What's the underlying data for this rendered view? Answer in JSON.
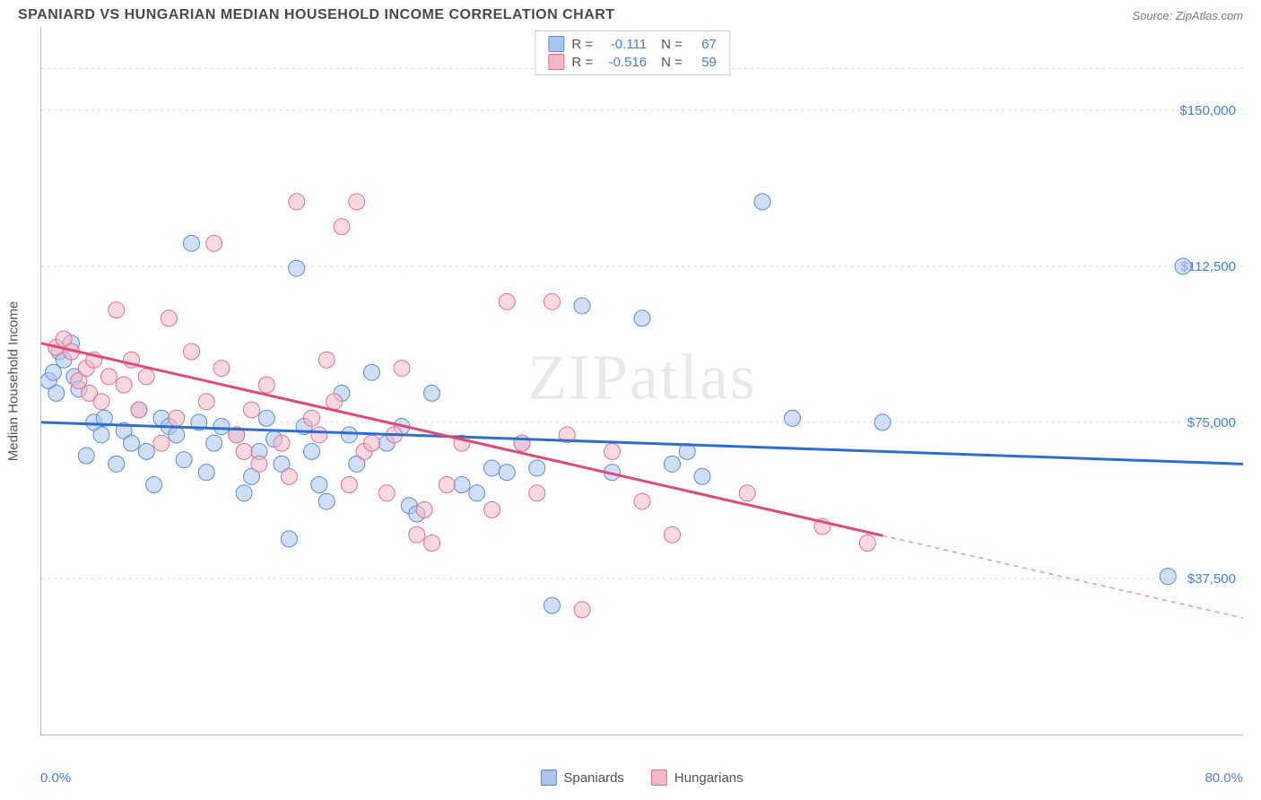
{
  "header": {
    "title": "SPANIARD VS HUNGARIAN MEDIAN HOUSEHOLD INCOME CORRELATION CHART",
    "source": "Source: ZipAtlas.com"
  },
  "chart": {
    "type": "scatter",
    "y_axis_label": "Median Household Income",
    "xlim": [
      0,
      80
    ],
    "ylim": [
      0,
      170000
    ],
    "x_tick_min_label": "0.0%",
    "x_tick_max_label": "80.0%",
    "x_ticks": [
      0,
      10,
      20,
      30,
      40,
      50,
      60,
      70,
      80
    ],
    "y_ticks": [
      37500,
      75000,
      112500,
      150000
    ],
    "y_tick_labels": [
      "$37,500",
      "$75,000",
      "$112,500",
      "$150,000"
    ],
    "y_grid_dashed": [
      37500,
      75000,
      112500,
      150000,
      160000
    ],
    "grid_color": "#d8d8d8",
    "axis_color": "#bbbbbb",
    "background_color": "#ffffff",
    "y_label_color": "#4a7fd8",
    "point_radius": 9,
    "stats": [
      {
        "swatch_fill": "#a9c5ec",
        "swatch_stroke": "#5a8cd6",
        "r_label": "R =",
        "r": "-0.111",
        "n_label": "N =",
        "n": "67"
      },
      {
        "swatch_fill": "#f2b9c6",
        "swatch_stroke": "#e06f8e",
        "r_label": "R =",
        "r": "-0.516",
        "n_label": "N =",
        "n": "59"
      }
    ],
    "series": [
      {
        "name": "Spaniards",
        "fill": "#a9c5ec",
        "stroke": "#5a8cd6",
        "fill_opacity": 0.55,
        "trend": {
          "color": "#2d6fd0",
          "width": 3,
          "x1": 0,
          "y1": 75000,
          "x2": 80,
          "y2": 65000,
          "solid_to_x": 80
        },
        "points": [
          [
            0.5,
            85000
          ],
          [
            0.8,
            87000
          ],
          [
            1,
            82000
          ],
          [
            1.2,
            92000
          ],
          [
            1.5,
            90000
          ],
          [
            2,
            94000
          ],
          [
            2.2,
            86000
          ],
          [
            2.5,
            83000
          ],
          [
            3,
            67000
          ],
          [
            3.5,
            75000
          ],
          [
            4,
            72000
          ],
          [
            4.2,
            76000
          ],
          [
            5,
            65000
          ],
          [
            5.5,
            73000
          ],
          [
            6,
            70000
          ],
          [
            6.5,
            78000
          ],
          [
            7,
            68000
          ],
          [
            7.5,
            60000
          ],
          [
            8,
            76000
          ],
          [
            8.5,
            74000
          ],
          [
            9,
            72000
          ],
          [
            9.5,
            66000
          ],
          [
            10,
            118000
          ],
          [
            10.5,
            75000
          ],
          [
            11,
            63000
          ],
          [
            11.5,
            70000
          ],
          [
            12,
            74000
          ],
          [
            13,
            72000
          ],
          [
            13.5,
            58000
          ],
          [
            14,
            62000
          ],
          [
            14.5,
            68000
          ],
          [
            15,
            76000
          ],
          [
            15.5,
            71000
          ],
          [
            16,
            65000
          ],
          [
            16.5,
            47000
          ],
          [
            17,
            112000
          ],
          [
            17.5,
            74000
          ],
          [
            18,
            68000
          ],
          [
            18.5,
            60000
          ],
          [
            19,
            56000
          ],
          [
            20,
            82000
          ],
          [
            20.5,
            72000
          ],
          [
            21,
            65000
          ],
          [
            22,
            87000
          ],
          [
            23,
            70000
          ],
          [
            24,
            74000
          ],
          [
            24.5,
            55000
          ],
          [
            25,
            53000
          ],
          [
            26,
            82000
          ],
          [
            28,
            60000
          ],
          [
            29,
            58000
          ],
          [
            30,
            64000
          ],
          [
            31,
            63000
          ],
          [
            32,
            70000
          ],
          [
            33,
            64000
          ],
          [
            34,
            31000
          ],
          [
            36,
            103000
          ],
          [
            38,
            63000
          ],
          [
            40,
            100000
          ],
          [
            42,
            65000
          ],
          [
            43,
            68000
          ],
          [
            44,
            62000
          ],
          [
            48,
            128000
          ],
          [
            50,
            76000
          ],
          [
            56,
            75000
          ],
          [
            75,
            38000
          ],
          [
            76,
            112500
          ]
        ]
      },
      {
        "name": "Hungarians",
        "fill": "#f2b9c6",
        "stroke": "#e06f8e",
        "fill_opacity": 0.55,
        "trend": {
          "color": "#e04a76",
          "width": 3,
          "x1": 0,
          "y1": 94000,
          "x2": 80,
          "y2": 28000,
          "solid_to_x": 56
        },
        "points": [
          [
            1,
            93000
          ],
          [
            1.5,
            95000
          ],
          [
            2,
            92000
          ],
          [
            2.5,
            85000
          ],
          [
            3,
            88000
          ],
          [
            3.2,
            82000
          ],
          [
            3.5,
            90000
          ],
          [
            4,
            80000
          ],
          [
            4.5,
            86000
          ],
          [
            5,
            102000
          ],
          [
            5.5,
            84000
          ],
          [
            6,
            90000
          ],
          [
            6.5,
            78000
          ],
          [
            7,
            86000
          ],
          [
            8,
            70000
          ],
          [
            8.5,
            100000
          ],
          [
            9,
            76000
          ],
          [
            10,
            92000
          ],
          [
            11,
            80000
          ],
          [
            11.5,
            118000
          ],
          [
            12,
            88000
          ],
          [
            13,
            72000
          ],
          [
            13.5,
            68000
          ],
          [
            14,
            78000
          ],
          [
            14.5,
            65000
          ],
          [
            15,
            84000
          ],
          [
            16,
            70000
          ],
          [
            16.5,
            62000
          ],
          [
            17,
            128000
          ],
          [
            18,
            76000
          ],
          [
            18.5,
            72000
          ],
          [
            19,
            90000
          ],
          [
            19.5,
            80000
          ],
          [
            20,
            122000
          ],
          [
            20.5,
            60000
          ],
          [
            21,
            128000
          ],
          [
            21.5,
            68000
          ],
          [
            22,
            70000
          ],
          [
            23,
            58000
          ],
          [
            23.5,
            72000
          ],
          [
            24,
            88000
          ],
          [
            25,
            48000
          ],
          [
            25.5,
            54000
          ],
          [
            26,
            46000
          ],
          [
            27,
            60000
          ],
          [
            28,
            70000
          ],
          [
            30,
            54000
          ],
          [
            31,
            104000
          ],
          [
            32,
            70000
          ],
          [
            33,
            58000
          ],
          [
            34,
            104000
          ],
          [
            35,
            72000
          ],
          [
            36,
            30000
          ],
          [
            38,
            68000
          ],
          [
            40,
            56000
          ],
          [
            42,
            48000
          ],
          [
            47,
            58000
          ],
          [
            52,
            50000
          ],
          [
            55,
            46000
          ]
        ]
      }
    ],
    "legend_bottom": [
      {
        "label": "Spaniards",
        "fill": "#a9c5ec",
        "stroke": "#5a8cd6"
      },
      {
        "label": "Hungarians",
        "fill": "#f2b9c6",
        "stroke": "#e06f8e"
      }
    ],
    "watermark": "ZIPatlas"
  }
}
